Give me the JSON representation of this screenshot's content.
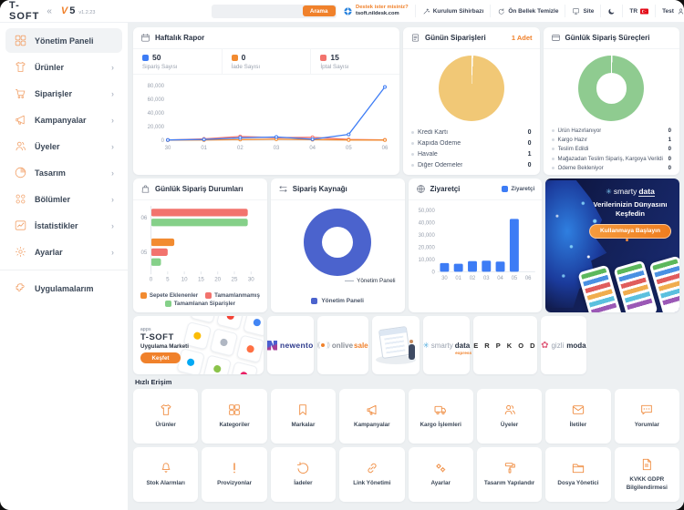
{
  "header": {
    "brand": "T-SOFT",
    "version_major_v": "V",
    "version_major_n": "5",
    "version": "v1.2.23",
    "search": {
      "button": "Arama",
      "value": ""
    },
    "support": {
      "line1": "Destek ister misiniz?",
      "line2": "tsoft.nildesk.com"
    },
    "menu": {
      "wizard": "Kurulum Sihirbazı",
      "cache": "Ön Bellek Temizle",
      "site": "Site",
      "lang": "TR",
      "user": "Test"
    },
    "accent_color": "#f0812b"
  },
  "sidebar": {
    "items": [
      {
        "label": "Yönetim Paneli",
        "active": true
      },
      {
        "label": "Ürünler"
      },
      {
        "label": "Siparişler"
      },
      {
        "label": "Kampanyalar"
      },
      {
        "label": "Üyeler"
      },
      {
        "label": "Tasarım"
      },
      {
        "label": "Bölümler"
      },
      {
        "label": "İstatistikler"
      },
      {
        "label": "Ayarlar"
      }
    ],
    "footer_item": {
      "label": "Uygulamalarım"
    }
  },
  "cards": {
    "weekly_report": {
      "title": "Haftalık Rapor",
      "legend": [
        {
          "value": "50",
          "label": "Sipariş Sayısı"
        },
        {
          "value": "0",
          "label": "İade Sayısı"
        },
        {
          "value": "15",
          "label": "İptal Sayısı"
        }
      ]
    },
    "todays_orders": {
      "title": "Günün Siparişleri",
      "badge": "1 Adet",
      "rows": [
        {
          "label": "Kredi Kartı",
          "value": "0"
        },
        {
          "label": "Kapıda Ödeme",
          "value": "0"
        },
        {
          "label": "Havale",
          "value": "1"
        },
        {
          "label": "Diğer Ödemeler",
          "value": "0"
        }
      ]
    },
    "daily_order_processes": {
      "title": "Günlük Sipariş Süreçleri",
      "rows": [
        {
          "label": "Ürün Hazırlanıyor",
          "value": "0"
        },
        {
          "label": "Kargo Hazır",
          "value": "1"
        },
        {
          "label": "Teslim Edildi",
          "value": "0"
        },
        {
          "label": "Mağazadan Teslim Sipariş, Kargoya Verildi",
          "value": "0"
        },
        {
          "label": "Ödeme Bekleniyor",
          "value": "0"
        }
      ]
    },
    "daily_order_status": {
      "title": "Günlük Sipariş Durumları"
    },
    "order_source": {
      "title": "Sipariş Kaynağı",
      "callout": "Yönetim Paneli",
      "legend": "Yönetim Paneli"
    },
    "visitors": {
      "title": "Ziyaretçi",
      "legend": "Ziyaretçi"
    },
    "promo": {
      "brand_light": "smarty",
      "brand_bold": "data",
      "headline_line1": "Verilerinizin Dünyasını",
      "headline_line2": "Keşfedin",
      "button": "Kullanmaya Başlayın"
    }
  },
  "partners": {
    "market": {
      "small": "apps",
      "brand": "T-SOFT",
      "caption": "Uygulama Marketi",
      "button": "Keşfet"
    },
    "newento": {
      "name": "newento"
    },
    "onlivesale": {
      "part1": "onlive",
      "part2": "sale"
    },
    "smartydata": {
      "part1": "smarty",
      "part2": "data",
      "sub": "express"
    },
    "erpkod": {
      "name": "E R P K O D"
    },
    "gizlimoda": {
      "part1": "gizli",
      "part2": "moda"
    }
  },
  "quick_access": {
    "title": "Hızlı Erişim",
    "items": [
      {
        "label": "Ürünler",
        "icon": "tshirt"
      },
      {
        "label": "Kategoriler",
        "icon": "grid"
      },
      {
        "label": "Markalar",
        "icon": "bookmark"
      },
      {
        "label": "Kampanyalar",
        "icon": "megaphone"
      },
      {
        "label": "Kargo İşlemleri",
        "icon": "truck"
      },
      {
        "label": "Üyeler",
        "icon": "users"
      },
      {
        "label": "İletiler",
        "icon": "mail"
      },
      {
        "label": "Yorumlar",
        "icon": "chat"
      },
      {
        "label": "Stok Alarmları",
        "icon": "bell"
      },
      {
        "label": "Provizyonlar",
        "icon": "exclaim"
      },
      {
        "label": "İadeler",
        "icon": "rotate"
      },
      {
        "label": "Link Yönetimi",
        "icon": "link"
      },
      {
        "label": "Ayarlar",
        "icon": "cogs"
      },
      {
        "label": "Tasarım Yapılandır",
        "icon": "roller"
      },
      {
        "label": "Dosya Yönetici",
        "icon": "folder"
      },
      {
        "label": "KVKK GDPR Bilgilendirmesi",
        "icon": "dockvkk"
      }
    ]
  },
  "chart_data": [
    {
      "id": "weekly_report",
      "type": "line",
      "title": "Haftalık Rapor",
      "x": [
        "30",
        "01",
        "02",
        "03",
        "04",
        "05",
        "06"
      ],
      "series": [
        {
          "name": "Sipariş Sayısı",
          "color": "#3d7cf5",
          "values": [
            400,
            1200,
            3500,
            4800,
            1500,
            8500,
            78000
          ]
        },
        {
          "name": "İade Sayısı",
          "color": "#f28b30",
          "values": [
            200,
            400,
            1000,
            1500,
            900,
            400,
            300
          ]
        },
        {
          "name": "İptal Sayısı",
          "color": "#f2736d",
          "values": [
            300,
            2000,
            5500,
            3800,
            4300,
            1200,
            500
          ]
        }
      ],
      "ylim": [
        0,
        80000
      ],
      "yticks": [
        0,
        20000,
        40000,
        60000,
        80000
      ],
      "legend_totals": {
        "Sipariş Sayısı": 50,
        "İade Sayısı": 0,
        "İptal Sayısı": 15
      }
    },
    {
      "id": "daily_order_status",
      "type": "bar-horizontal",
      "title": "Günlük Sipariş Durumları",
      "categories": [
        "06",
        "05"
      ],
      "series": [
        {
          "name": "Sepete Eklenenler",
          "color": "#f28b30",
          "values": [
            0,
            7
          ]
        },
        {
          "name": "Tamamlanmamış",
          "color": "#f2736d",
          "values": [
            29,
            5
          ]
        },
        {
          "name": "Tamamlanan Siparişler",
          "color": "#85d089",
          "values": [
            29,
            3
          ]
        }
      ],
      "xlim": [
        0,
        30
      ],
      "xticks": [
        0,
        5,
        10,
        15,
        20,
        25,
        30
      ]
    },
    {
      "id": "order_source",
      "type": "donut",
      "title": "Sipariş Kaynağı",
      "slices": [
        {
          "label": "Yönetim Paneli",
          "value": 100,
          "color": "#4b63cd"
        }
      ]
    },
    {
      "id": "visitors",
      "type": "bar",
      "title": "Ziyaretçi",
      "x": [
        "30",
        "01",
        "02",
        "03",
        "04",
        "05",
        "06"
      ],
      "series": [
        {
          "name": "Ziyaretçi",
          "color": "#3d7cf5",
          "values": [
            7000,
            6500,
            8600,
            9000,
            8200,
            43000,
            300
          ]
        }
      ],
      "ylim": [
        0,
        50000
      ],
      "yticks": [
        0,
        10000,
        20000,
        30000,
        40000,
        50000
      ]
    },
    {
      "id": "todays_orders",
      "type": "pie",
      "title": "Günün Siparişleri",
      "total_label": "1 Adet",
      "slices": [
        {
          "label": "Havale",
          "value": 1,
          "color": "#f1c876"
        }
      ]
    },
    {
      "id": "daily_order_processes",
      "type": "donut",
      "title": "Günlük Sipariş Süreçleri",
      "slices": [
        {
          "label": "Kargo Hazır",
          "value": 1,
          "color": "#8fcb90"
        }
      ]
    }
  ]
}
